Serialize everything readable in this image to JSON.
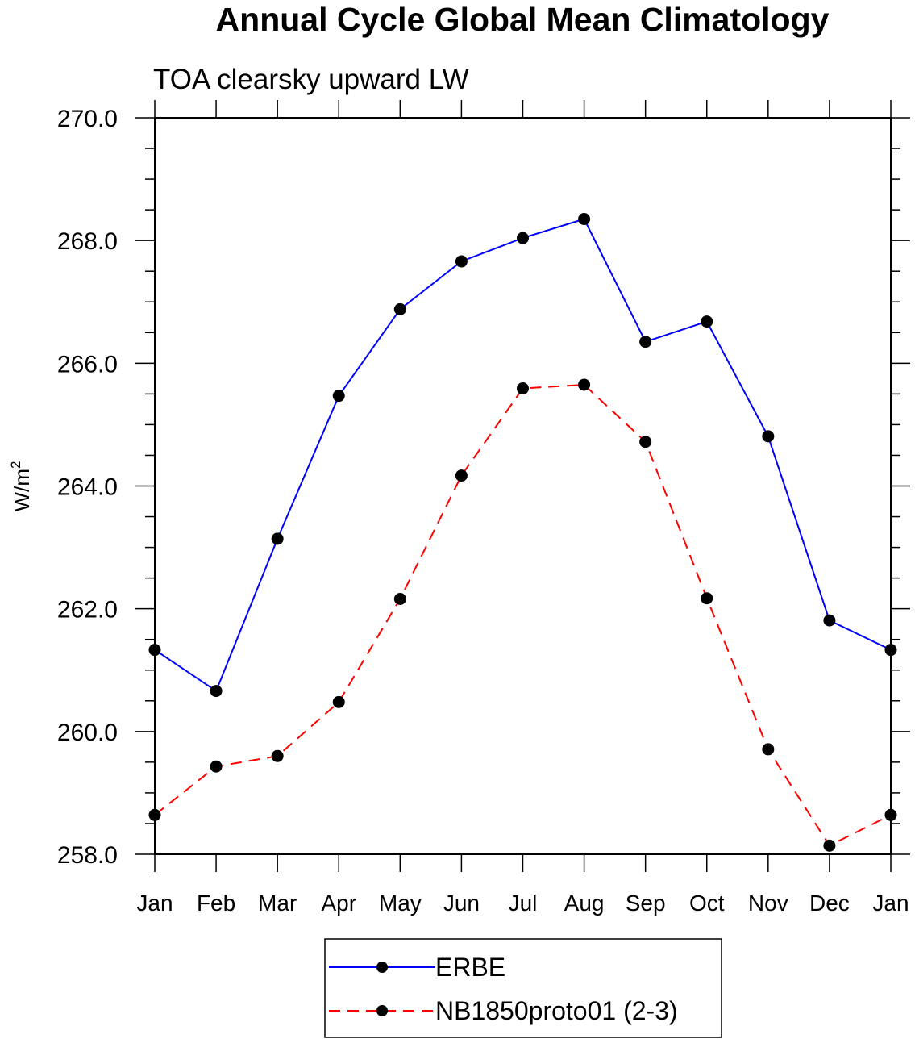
{
  "chart_data": {
    "type": "line",
    "title": "Annual Cycle Global Mean Climatology",
    "subtitle": "TOA clearsky upward LW",
    "ylabel": "W/m",
    "ylabel_sup": "2",
    "xlabel": "",
    "categories": [
      "Jan",
      "Feb",
      "Mar",
      "Apr",
      "May",
      "Jun",
      "Jul",
      "Aug",
      "Sep",
      "Oct",
      "Nov",
      "Dec",
      "Jan"
    ],
    "ylim": [
      258.0,
      270.0
    ],
    "yticks": [
      "258.0",
      "260.0",
      "262.0",
      "264.0",
      "266.0",
      "268.0",
      "270.0"
    ],
    "grid": false,
    "legend_position": "bottom-center",
    "series": [
      {
        "name": "ERBE",
        "color": "#0000ff",
        "line_style": "solid",
        "marker": "filled-circle",
        "values": [
          261.33,
          260.66,
          263.14,
          265.47,
          266.88,
          267.66,
          268.04,
          268.35,
          266.35,
          266.68,
          264.81,
          261.81,
          261.33
        ]
      },
      {
        "name": "NB1850proto01 (2-3)",
        "color": "#ff0000",
        "line_style": "dashed",
        "marker": "filled-circle",
        "values": [
          258.64,
          259.43,
          259.6,
          260.48,
          262.16,
          264.17,
          265.59,
          265.65,
          264.72,
          262.17,
          259.71,
          258.14,
          258.64
        ]
      }
    ]
  }
}
